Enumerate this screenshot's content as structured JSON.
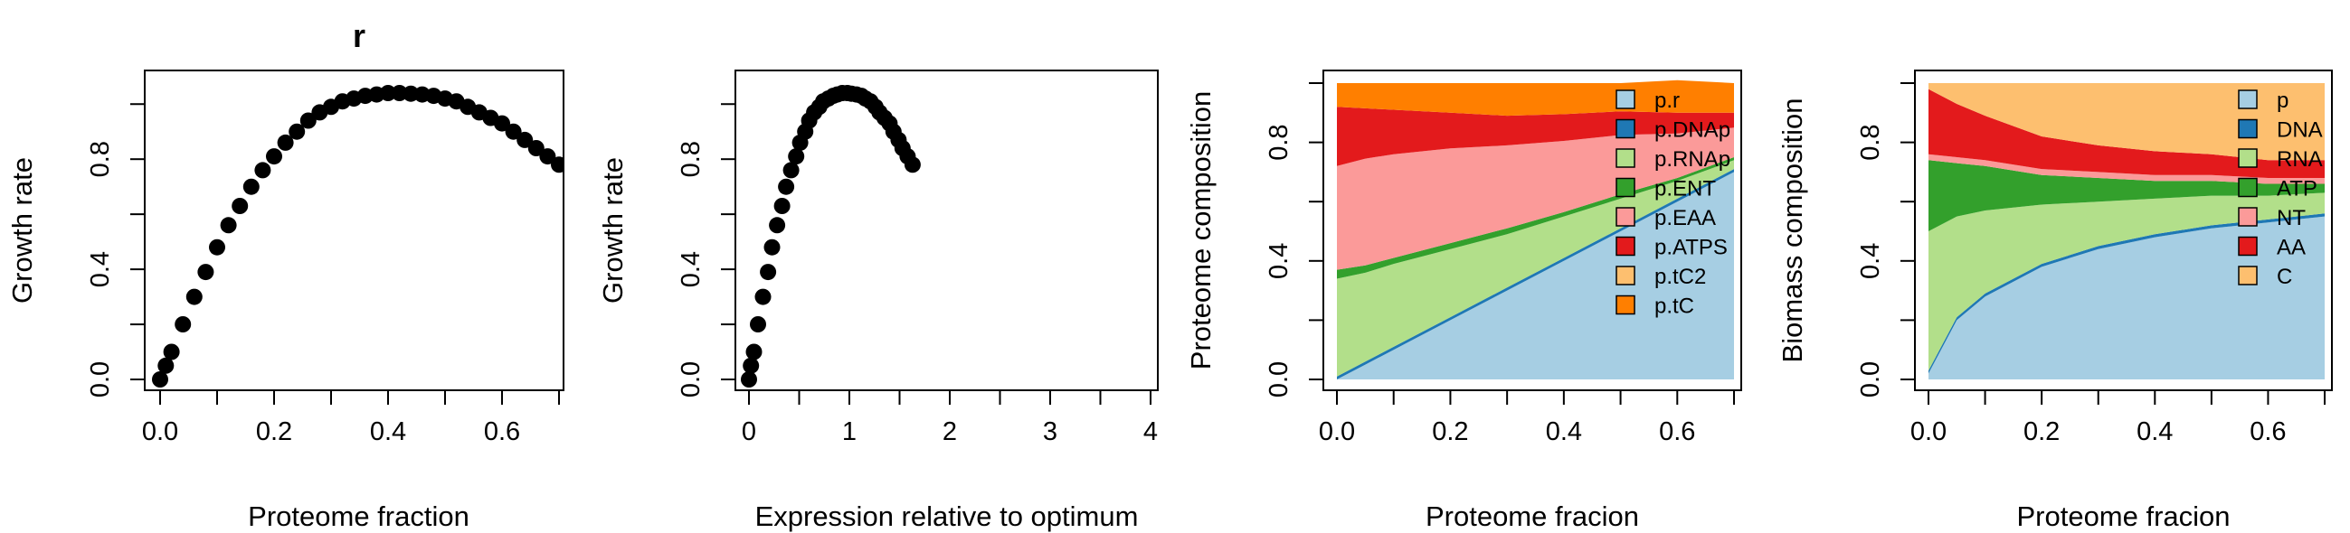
{
  "chart_data": [
    {
      "type": "scatter",
      "title": "r",
      "xlabel": "Proteome fraction",
      "ylabel": "Growth rate",
      "xlim": [
        0,
        0.7
      ],
      "ylim": [
        0,
        1.05
      ],
      "xticks": [
        "0.0",
        "0.2",
        "0.4",
        "0.6"
      ],
      "yticks": [
        "0.0",
        "0.4",
        "0.8"
      ],
      "marker_color": "#000000",
      "x": [
        0.0,
        0.01,
        0.02,
        0.04,
        0.06,
        0.08,
        0.1,
        0.12,
        0.14,
        0.16,
        0.18,
        0.2,
        0.22,
        0.24,
        0.26,
        0.28,
        0.3,
        0.32,
        0.34,
        0.36,
        0.38,
        0.4,
        0.42,
        0.44,
        0.46,
        0.48,
        0.5,
        0.52,
        0.54,
        0.56,
        0.58,
        0.6,
        0.62,
        0.64,
        0.66,
        0.68,
        0.7
      ],
      "y": [
        0.0,
        0.05,
        0.1,
        0.2,
        0.3,
        0.39,
        0.48,
        0.56,
        0.63,
        0.7,
        0.76,
        0.81,
        0.86,
        0.9,
        0.94,
        0.97,
        0.99,
        1.01,
        1.02,
        1.03,
        1.035,
        1.04,
        1.04,
        1.038,
        1.035,
        1.03,
        1.02,
        1.01,
        0.99,
        0.97,
        0.95,
        0.93,
        0.9,
        0.87,
        0.84,
        0.81,
        0.78
      ]
    },
    {
      "type": "scatter",
      "title": "",
      "xlabel": "Expression relative to optimum",
      "ylabel": "Growth rate",
      "xlim": [
        0,
        4
      ],
      "ylim": [
        0,
        1.05
      ],
      "xticks": [
        "0",
        "1",
        "2",
        "3",
        "4"
      ],
      "yticks": [
        "0.0",
        "0.4",
        "0.8"
      ],
      "marker_color": "#000000",
      "x": [
        0.0,
        0.02,
        0.05,
        0.09,
        0.14,
        0.19,
        0.23,
        0.28,
        0.33,
        0.37,
        0.42,
        0.47,
        0.51,
        0.56,
        0.6,
        0.65,
        0.7,
        0.74,
        0.79,
        0.84,
        0.88,
        0.93,
        0.98,
        1.02,
        1.07,
        1.12,
        1.16,
        1.21,
        1.26,
        1.3,
        1.35,
        1.4,
        1.44,
        1.49,
        1.53,
        1.58,
        1.63
      ],
      "y": [
        0.0,
        0.05,
        0.1,
        0.2,
        0.3,
        0.39,
        0.48,
        0.56,
        0.63,
        0.7,
        0.76,
        0.81,
        0.86,
        0.9,
        0.94,
        0.97,
        0.99,
        1.01,
        1.02,
        1.03,
        1.035,
        1.04,
        1.04,
        1.038,
        1.035,
        1.03,
        1.02,
        1.01,
        0.99,
        0.97,
        0.95,
        0.93,
        0.9,
        0.87,
        0.84,
        0.81,
        0.78
      ]
    },
    {
      "type": "area",
      "stacked": true,
      "title": "",
      "xlabel": "Proteome fracion",
      "ylabel": "Proteome composition",
      "xlim": [
        0,
        0.7
      ],
      "ylim": [
        0,
        1
      ],
      "xticks": [
        "0.0",
        "0.2",
        "0.4",
        "0.6"
      ],
      "yticks": [
        "0.0",
        "0.4",
        "0.8"
      ],
      "legend_position": "top-right",
      "x": [
        0.0,
        0.05,
        0.1,
        0.2,
        0.3,
        0.4,
        0.5,
        0.6,
        0.7
      ],
      "series": [
        {
          "name": "p.r",
          "color": "#A6CEE3",
          "values": [
            0.0,
            0.05,
            0.1,
            0.2,
            0.3,
            0.4,
            0.5,
            0.6,
            0.7
          ]
        },
        {
          "name": "p.DNAp",
          "color": "#1F78B4",
          "values": [
            0.01,
            0.01,
            0.01,
            0.01,
            0.01,
            0.01,
            0.01,
            0.01,
            0.01
          ]
        },
        {
          "name": "p.RNAp",
          "color": "#B2DF8A",
          "values": [
            0.33,
            0.3,
            0.28,
            0.23,
            0.18,
            0.14,
            0.1,
            0.06,
            0.03
          ]
        },
        {
          "name": "p.ENT",
          "color": "#33A02C",
          "values": [
            0.03,
            0.025,
            0.02,
            0.02,
            0.02,
            0.015,
            0.015,
            0.01,
            0.01
          ]
        },
        {
          "name": "p.EAA",
          "color": "#FB9A99",
          "values": [
            0.35,
            0.36,
            0.35,
            0.32,
            0.28,
            0.24,
            0.2,
            0.15,
            0.1
          ]
        },
        {
          "name": "p.ATPS",
          "color": "#E31A1C",
          "values": [
            0.2,
            0.17,
            0.15,
            0.12,
            0.1,
            0.09,
            0.08,
            0.07,
            0.05
          ]
        },
        {
          "name": "p.tC2",
          "color": "#FDBF6F",
          "values": [
            0.0,
            0.0,
            0.0,
            0.0,
            0.0,
            0.0,
            0.0,
            0.0,
            0.0
          ]
        },
        {
          "name": "p.tC",
          "color": "#FF7F00",
          "values": [
            0.08,
            0.085,
            0.09,
            0.1,
            0.11,
            0.105,
            0.095,
            0.11,
            0.1
          ]
        }
      ]
    },
    {
      "type": "area",
      "stacked": true,
      "title": "",
      "xlabel": "Proteome fracion",
      "ylabel": "Biomass composition",
      "xlim": [
        0,
        0.7
      ],
      "ylim": [
        0,
        1
      ],
      "xticks": [
        "0.0",
        "0.2",
        "0.4",
        "0.6"
      ],
      "yticks": [
        "0.0",
        "0.4",
        "0.8"
      ],
      "legend_position": "top-right",
      "x": [
        0.0,
        0.05,
        0.1,
        0.2,
        0.3,
        0.4,
        0.5,
        0.6,
        0.7
      ],
      "series": [
        {
          "name": "p",
          "color": "#A6CEE3",
          "values": [
            0.02,
            0.2,
            0.28,
            0.38,
            0.44,
            0.48,
            0.51,
            0.53,
            0.55
          ]
        },
        {
          "name": "DNA",
          "color": "#1F78B4",
          "values": [
            0.01,
            0.01,
            0.01,
            0.01,
            0.01,
            0.01,
            0.01,
            0.01,
            0.01
          ]
        },
        {
          "name": "RNA",
          "color": "#B2DF8A",
          "values": [
            0.47,
            0.34,
            0.28,
            0.2,
            0.15,
            0.12,
            0.1,
            0.08,
            0.07
          ]
        },
        {
          "name": "ATP",
          "color": "#33A02C",
          "values": [
            0.24,
            0.18,
            0.15,
            0.1,
            0.08,
            0.06,
            0.05,
            0.04,
            0.03
          ]
        },
        {
          "name": "NT",
          "color": "#FB9A99",
          "values": [
            0.02,
            0.02,
            0.02,
            0.02,
            0.02,
            0.02,
            0.02,
            0.02,
            0.02
          ]
        },
        {
          "name": "AA",
          "color": "#E31A1C",
          "values": [
            0.22,
            0.18,
            0.15,
            0.11,
            0.09,
            0.08,
            0.07,
            0.06,
            0.06
          ]
        },
        {
          "name": "C",
          "color": "#FDBF6F",
          "values": [
            0.02,
            0.07,
            0.11,
            0.18,
            0.21,
            0.23,
            0.24,
            0.26,
            0.26
          ]
        }
      ]
    }
  ]
}
